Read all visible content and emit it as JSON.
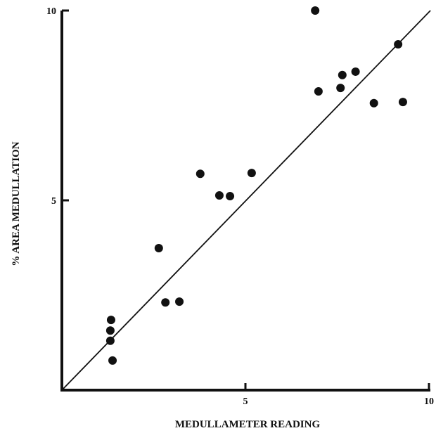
{
  "chart_data": {
    "type": "scatter",
    "x_label": "MEDULLAMETER READING",
    "y_label": "% AREA MEDULLATION",
    "xlim": [
      0,
      10
    ],
    "ylim": [
      0,
      10
    ],
    "xticks": [
      5,
      10
    ],
    "yticks": [
      5,
      10
    ],
    "color": "#111111",
    "series": [
      {
        "x": [
          6.9,
          9.16,
          6.99,
          7.64,
          8.0,
          7.59,
          8.5,
          9.29,
          3.77,
          5.17,
          4.29,
          4.58,
          2.64,
          2.82,
          3.2,
          1.34,
          1.32,
          1.32,
          1.38
        ],
        "values": [
          10.0,
          9.11,
          7.87,
          8.3,
          8.39,
          7.96,
          7.56,
          7.59,
          5.7,
          5.72,
          5.13,
          5.11,
          3.74,
          2.31,
          2.33,
          1.85,
          1.57,
          1.3,
          0.78
        ]
      }
    ],
    "fit_line": {
      "x": [
        0,
        10.04
      ],
      "values": [
        0,
        10
      ]
    }
  }
}
